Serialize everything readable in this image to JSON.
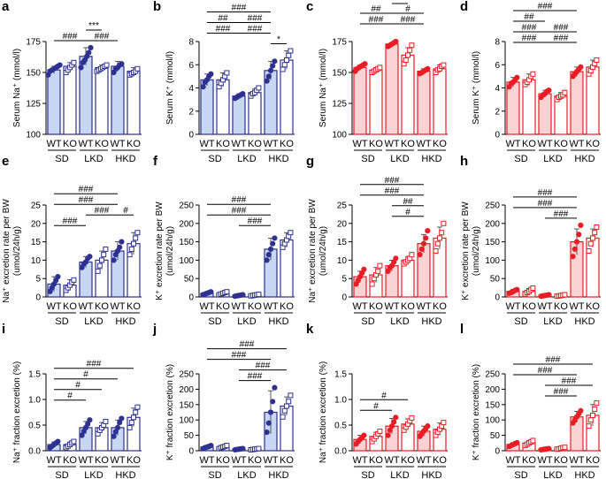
{
  "figure": {
    "group_labels": [
      "SD",
      "LKD",
      "HKD"
    ],
    "genotype_labels": [
      "WT",
      "KO",
      "WT",
      "KO",
      "WT",
      "KO"
    ],
    "colors": {
      "blue": "#2e3192",
      "blue_fill": "#c7d8f2",
      "red": "#ec1c24",
      "red_fill": "#fbd3d5",
      "text": "#000000"
    }
  },
  "chart_data": [
    {
      "panel_label": "a",
      "type": "bar",
      "color": "blue",
      "marker_style": "circle-square",
      "ylabel": "Serum Na⁺ (mmol/l)",
      "ylim": [
        100,
        175
      ],
      "ticks": [
        "100",
        "125",
        "150",
        "175"
      ],
      "values": [
        152,
        155,
        163,
        154,
        155,
        151
      ],
      "errors": [
        3,
        3,
        7,
        2,
        4,
        3
      ],
      "points": [
        [
          148,
          151,
          152,
          153,
          154,
          155,
          156
        ],
        [
          150,
          152,
          154,
          156,
          158
        ],
        [
          154,
          158,
          160,
          163,
          166,
          170
        ],
        [
          151,
          152,
          153,
          154,
          155,
          156
        ],
        [
          150,
          153,
          154,
          156,
          157
        ],
        [
          148,
          149,
          150,
          151,
          153
        ]
      ],
      "annotations": [
        {
          "text": "***",
          "from": 2,
          "to": 3,
          "level": 1
        },
        {
          "text": "###",
          "from": 0,
          "to": 2,
          "level": 0
        },
        {
          "text": "###",
          "from": 2,
          "to": 4,
          "level": 0
        }
      ]
    },
    {
      "panel_label": "b",
      "type": "bar",
      "color": "blue",
      "marker_style": "circle-square",
      "ylabel": "Serum K⁺ (mmol/l)",
      "ylim": [
        0,
        8
      ],
      "ticks": [
        "0",
        "2",
        "4",
        "6",
        "8"
      ],
      "values": [
        4.7,
        4.7,
        3.3,
        3.6,
        5.5,
        6.4
      ],
      "errors": [
        0.5,
        0.6,
        0.2,
        0.3,
        0.8,
        0.8
      ],
      "points": [
        [
          4.1,
          4.5,
          4.7,
          5.0,
          5.2
        ],
        [
          4.1,
          4.4,
          4.7,
          5.0,
          5.3
        ],
        [
          3.1,
          3.2,
          3.3,
          3.4,
          3.5
        ],
        [
          3.3,
          3.5,
          3.6,
          3.8,
          4.0
        ],
        [
          4.6,
          5.0,
          5.5,
          5.9,
          6.3
        ],
        [
          5.6,
          6.0,
          6.4,
          6.8,
          7.2
        ]
      ],
      "annotations": [
        {
          "text": "###",
          "from": 0,
          "to": 4,
          "level": 3
        },
        {
          "text": "##",
          "from": 0,
          "to": 2,
          "level": 2
        },
        {
          "text": "###",
          "from": 2,
          "to": 4,
          "level": 2
        },
        {
          "text": "###",
          "from": 0,
          "to": 2,
          "level": 1
        },
        {
          "text": "###",
          "from": 2,
          "to": 4,
          "level": 1
        },
        {
          "text": "*",
          "from": 4,
          "to": 5,
          "level": 0
        }
      ]
    },
    {
      "panel_label": "c",
      "type": "bar",
      "color": "red",
      "marker_style": "circle-square",
      "ylabel": "Serum Na⁺ (mmol/l)",
      "ylim": [
        100,
        175
      ],
      "ticks": [
        "100",
        "125",
        "150",
        "175"
      ],
      "values": [
        154,
        152,
        173,
        164,
        151,
        153
      ],
      "errors": [
        2,
        2,
        1,
        6,
        2,
        3
      ],
      "points": [
        [
          151,
          153,
          154,
          155,
          156,
          157
        ],
        [
          150,
          151,
          152,
          153,
          154
        ],
        [
          171,
          172,
          173,
          174,
          175
        ],
        [
          157,
          160,
          164,
          168,
          172
        ],
        [
          149,
          150,
          151,
          152,
          153
        ],
        [
          150,
          152,
          153,
          155,
          156
        ]
      ],
      "annotations": [
        {
          "text": "**",
          "from": 2,
          "to": 3,
          "level": 3
        },
        {
          "text": "##",
          "from": 0,
          "to": 2,
          "level": 2
        },
        {
          "text": "#",
          "from": 2,
          "to": 4,
          "level": 2
        },
        {
          "text": "###",
          "from": 0,
          "to": 2,
          "level": 1
        },
        {
          "text": "###",
          "from": 2,
          "to": 4,
          "level": 1
        }
      ]
    },
    {
      "panel_label": "d",
      "type": "bar",
      "color": "red",
      "marker_style": "circle-square",
      "ylabel": "Serum K⁺ (mmol/l)",
      "ylim": [
        0,
        8
      ],
      "ticks": [
        "0",
        "2",
        "4",
        "6",
        "8"
      ],
      "values": [
        4.5,
        4.7,
        3.5,
        3.3,
        5.4,
        5.8
      ],
      "errors": [
        0.4,
        0.5,
        0.3,
        0.3,
        0.4,
        0.6
      ],
      "points": [
        [
          4.1,
          4.4,
          4.5,
          4.7,
          4.9
        ],
        [
          4.3,
          4.5,
          4.7,
          5.0,
          5.2
        ],
        [
          3.2,
          3.4,
          3.5,
          3.7,
          3.8
        ],
        [
          3.0,
          3.2,
          3.3,
          3.4,
          3.6
        ],
        [
          5.0,
          5.2,
          5.4,
          5.6,
          5.8
        ],
        [
          5.2,
          5.5,
          5.8,
          6.1,
          6.4
        ]
      ],
      "annotations": [
        {
          "text": "###",
          "from": 0,
          "to": 4,
          "level": 4
        },
        {
          "text": "##",
          "from": 0,
          "to": 2,
          "level": 3
        },
        {
          "text": "###",
          "from": 0,
          "to": 2,
          "level": 2
        },
        {
          "text": "###",
          "from": 2,
          "to": 4,
          "level": 2
        },
        {
          "text": "###",
          "from": 0,
          "to": 2,
          "level": 1
        },
        {
          "text": "###",
          "from": 2,
          "to": 4,
          "level": 1
        }
      ]
    },
    {
      "panel_label": "e",
      "type": "bar",
      "color": "blue",
      "marker_style": "circle-square",
      "ylabel": "Na⁺ excretion rate per BW",
      "ylabel2": "(umol/24h/g)",
      "ylim": [
        0,
        25
      ],
      "ticks": [
        "0",
        "5",
        "10",
        "15",
        "20",
        "25"
      ],
      "values": [
        3.5,
        3.2,
        9.5,
        10.0,
        12.5,
        14.5
      ],
      "errors": [
        2.0,
        1.5,
        1.5,
        2.5,
        2.5,
        3.0
      ],
      "points": [
        [
          1.5,
          2.5,
          3.5,
          4.5,
          5.5
        ],
        [
          1.8,
          2.5,
          3.2,
          4.0,
          4.6
        ],
        [
          8.0,
          9.0,
          9.5,
          10.5,
          11.0
        ],
        [
          7.0,
          8.5,
          10.0,
          11.5,
          13.0
        ],
        [
          10.0,
          11.5,
          12.5,
          13.5,
          15.0
        ],
        [
          11.5,
          13.0,
          14.5,
          16.0,
          17.5
        ]
      ],
      "annotations": [
        {
          "text": "###",
          "from": 0,
          "to": 4,
          "level": 3
        },
        {
          "text": "###",
          "from": 0,
          "to": 4,
          "level": 2
        },
        {
          "text": "###",
          "from": 2,
          "to": 4,
          "level": 1
        },
        {
          "text": "#",
          "from": 4,
          "to": 5,
          "level": 1
        },
        {
          "text": "###",
          "from": 0,
          "to": 2,
          "level": 0
        }
      ]
    },
    {
      "panel_label": "f",
      "type": "bar",
      "color": "blue",
      "marker_style": "circle-square",
      "ylabel": "K⁺ excretion rate per BW",
      "ylabel2": "(umol/24h/g)",
      "ylim": [
        0,
        250
      ],
      "ticks": [
        "0",
        "50",
        "100",
        "150",
        "200",
        "250"
      ],
      "values": [
        10,
        10,
        4,
        5,
        130,
        155
      ],
      "errors": [
        4,
        4,
        2,
        2,
        30,
        20
      ],
      "points": [
        [
          6,
          8,
          10,
          12,
          14
        ],
        [
          6,
          8,
          10,
          12,
          14
        ],
        [
          2,
          3,
          4,
          5,
          6
        ],
        [
          3,
          4,
          5,
          6,
          7
        ],
        [
          100,
          115,
          130,
          145,
          160
        ],
        [
          135,
          145,
          155,
          165,
          175
        ]
      ],
      "annotations": [
        {
          "text": "###",
          "from": 0,
          "to": 4,
          "level": 2
        },
        {
          "text": "###",
          "from": 0,
          "to": 4,
          "level": 1
        },
        {
          "text": "###",
          "from": 2,
          "to": 4,
          "level": 0
        }
      ]
    },
    {
      "panel_label": "g",
      "type": "bar",
      "color": "red",
      "marker_style": "circle-square",
      "ylabel": "Na⁺ excretion rate per BW",
      "ylabel2": "(umol/24h/g)",
      "ylim": [
        0,
        25
      ],
      "ticks": [
        "0",
        "5",
        "10",
        "15",
        "20",
        "25"
      ],
      "values": [
        5.5,
        6.0,
        8.5,
        10.0,
        14.5,
        16.0
      ],
      "errors": [
        1.5,
        2.0,
        1.5,
        1.0,
        2.5,
        3.0
      ],
      "points": [
        [
          3.5,
          4.5,
          5.5,
          6.5,
          7.5
        ],
        [
          3.5,
          5.0,
          6.0,
          7.0,
          8.5
        ],
        [
          7.0,
          8.0,
          8.5,
          9.5,
          10.5
        ],
        [
          9.0,
          9.5,
          10.0,
          10.5,
          11.5
        ],
        [
          11.5,
          13.0,
          14.5,
          16.0,
          18.0
        ],
        [
          12.5,
          14.5,
          16.0,
          17.5,
          20.0
        ]
      ],
      "annotations": [
        {
          "text": "###",
          "from": 0,
          "to": 4,
          "level": 3
        },
        {
          "text": "###",
          "from": 0,
          "to": 4,
          "level": 2
        },
        {
          "text": "##",
          "from": 2,
          "to": 4,
          "level": 1
        },
        {
          "text": "#",
          "from": 2,
          "to": 4,
          "level": 0
        }
      ]
    },
    {
      "panel_label": "h",
      "type": "bar",
      "color": "red",
      "marker_style": "circle-square",
      "ylabel": "K⁺ excretion rate per BW",
      "ylabel2": "(umol/24h/g)",
      "ylim": [
        0,
        250
      ],
      "ticks": [
        "0",
        "50",
        "100",
        "150",
        "200",
        "250"
      ],
      "values": [
        15,
        15,
        4,
        4,
        150,
        160
      ],
      "errors": [
        5,
        8,
        2,
        2,
        35,
        25
      ],
      "points": [
        [
          10,
          12,
          15,
          18,
          20
        ],
        [
          8,
          12,
          15,
          20,
          24
        ],
        [
          2,
          3,
          4,
          5,
          6
        ],
        [
          2,
          3,
          4,
          5,
          6
        ],
        [
          110,
          130,
          150,
          170,
          195
        ],
        [
          125,
          145,
          160,
          175,
          190
        ]
      ],
      "annotations": [
        {
          "text": "###",
          "from": 0,
          "to": 4,
          "level": 2
        },
        {
          "text": "###",
          "from": 0,
          "to": 4,
          "level": 1
        },
        {
          "text": "###",
          "from": 2,
          "to": 4,
          "level": 0
        }
      ]
    },
    {
      "panel_label": "i",
      "type": "bar",
      "color": "blue",
      "marker_style": "circle-square",
      "ylabel": "Na⁺ fraction excretion (%)",
      "ylim": [
        0,
        1.5
      ],
      "ticks": [
        "0.0",
        "0.5",
        "1.0",
        "1.5"
      ],
      "values": [
        0.12,
        0.12,
        0.45,
        0.45,
        0.45,
        0.65
      ],
      "errors": [
        0.05,
        0.05,
        0.12,
        0.1,
        0.15,
        0.18
      ],
      "points": [
        [
          0.06,
          0.09,
          0.12,
          0.15,
          0.18
        ],
        [
          0.06,
          0.09,
          0.12,
          0.15,
          0.18
        ],
        [
          0.3,
          0.38,
          0.45,
          0.52,
          0.6
        ],
        [
          0.33,
          0.4,
          0.45,
          0.5,
          0.57
        ],
        [
          0.28,
          0.37,
          0.45,
          0.55,
          0.63
        ],
        [
          0.45,
          0.55,
          0.65,
          0.75,
          0.85
        ]
      ],
      "annotations": [
        {
          "text": "###",
          "from": 0,
          "to": 5,
          "level": 3
        },
        {
          "text": "#",
          "from": 0,
          "to": 4,
          "level": 2
        },
        {
          "text": "#",
          "from": 0,
          "to": 3,
          "level": 1
        },
        {
          "text": "#",
          "from": 0,
          "to": 2,
          "level": 0
        }
      ]
    },
    {
      "panel_label": "j",
      "type": "bar",
      "color": "blue",
      "marker_style": "circle-square",
      "ylabel": "K⁺ fraction excretion (%)",
      "ylim": [
        0,
        250
      ],
      "ticks": [
        "0",
        "50",
        "100",
        "150",
        "200",
        "250"
      ],
      "values": [
        12,
        12,
        5,
        5,
        125,
        145
      ],
      "errors": [
        5,
        5,
        2,
        2,
        70,
        30
      ],
      "points": [
        [
          7,
          10,
          12,
          14,
          17
        ],
        [
          7,
          10,
          12,
          14,
          17
        ],
        [
          3,
          4,
          5,
          6,
          7
        ],
        [
          3,
          4,
          5,
          6,
          7
        ],
        [
          60,
          90,
          125,
          160,
          205
        ],
        [
          110,
          130,
          145,
          160,
          180
        ]
      ],
      "annotations": [
        {
          "text": "###",
          "from": 0,
          "to": 5,
          "level": 3
        },
        {
          "text": "###",
          "from": 0,
          "to": 4,
          "level": 2
        },
        {
          "text": "###",
          "from": 2,
          "to": 5,
          "level": 1
        },
        {
          "text": "###",
          "from": 2,
          "to": 4,
          "level": 0
        }
      ]
    },
    {
      "panel_label": "k",
      "type": "bar",
      "color": "red",
      "marker_style": "circle-square",
      "ylabel": "Na⁺ fraction excretion (%)",
      "ylim": [
        0,
        1.5
      ],
      "ticks": [
        "0.0",
        "0.5",
        "1.0",
        "1.5"
      ],
      "values": [
        0.22,
        0.28,
        0.48,
        0.52,
        0.38,
        0.42
      ],
      "errors": [
        0.08,
        0.08,
        0.15,
        0.1,
        0.1,
        0.12
      ],
      "points": [
        [
          0.13,
          0.18,
          0.22,
          0.26,
          0.3
        ],
        [
          0.18,
          0.23,
          0.28,
          0.33,
          0.38
        ],
        [
          0.3,
          0.4,
          0.48,
          0.56,
          0.65
        ],
        [
          0.4,
          0.46,
          0.52,
          0.58,
          0.64
        ],
        [
          0.28,
          0.33,
          0.38,
          0.43,
          0.48
        ],
        [
          0.3,
          0.36,
          0.42,
          0.48,
          0.55
        ]
      ],
      "annotations": [
        {
          "text": "#",
          "from": 0,
          "to": 3,
          "level": 1
        },
        {
          "text": "#",
          "from": 0,
          "to": 2,
          "level": 0
        }
      ]
    },
    {
      "panel_label": "l",
      "type": "bar",
      "color": "red",
      "marker_style": "circle-square",
      "ylabel": "K⁺ fraction excretion (%)",
      "ylim": [
        0,
        250
      ],
      "ticks": [
        "0",
        "50",
        "100",
        "150",
        "200",
        "250"
      ],
      "values": [
        20,
        25,
        5,
        8,
        110,
        115
      ],
      "errors": [
        6,
        8,
        2,
        3,
        18,
        35
      ],
      "points": [
        [
          14,
          17,
          20,
          23,
          26
        ],
        [
          17,
          21,
          25,
          29,
          33
        ],
        [
          3,
          4,
          5,
          6,
          7
        ],
        [
          5,
          6,
          8,
          10,
          11
        ],
        [
          90,
          100,
          110,
          120,
          130
        ],
        [
          80,
          100,
          115,
          135,
          155
        ]
      ],
      "annotations": [
        {
          "text": "###",
          "from": 0,
          "to": 5,
          "level": 3
        },
        {
          "text": "###",
          "from": 0,
          "to": 4,
          "level": 2
        },
        {
          "text": "###",
          "from": 2,
          "to": 5,
          "level": 1
        },
        {
          "text": "###",
          "from": 2,
          "to": 4,
          "level": 0
        }
      ]
    }
  ]
}
